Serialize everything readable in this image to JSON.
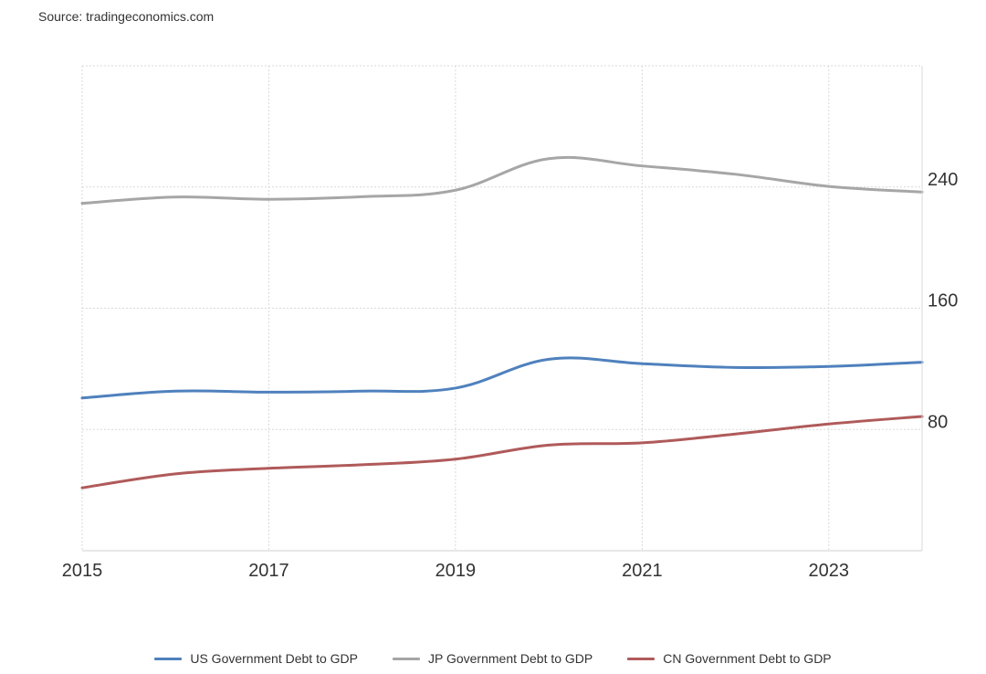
{
  "source": "Source: tradingeconomics.com",
  "chart_data": {
    "type": "line",
    "x": [
      2015,
      2016,
      2017,
      2018,
      2019,
      2020,
      2021,
      2022,
      2023,
      2024
    ],
    "xticks": [
      "2015",
      "2017",
      "2019",
      "2021",
      "2023"
    ],
    "yticks": [
      "80",
      "160",
      "240"
    ],
    "ylim": [
      0,
      320
    ],
    "xlim": [
      2015,
      2024
    ],
    "grid": true,
    "legend_position": "bottom",
    "series": [
      {
        "name": "US Government Debt to GDP",
        "color": "#4f81bd",
        "values": [
          100.8,
          105.3,
          104.6,
          105.3,
          107.3,
          126.3,
          123.4,
          120.9,
          121.6,
          124.4
        ]
      },
      {
        "name": "JP Government Debt to GDP",
        "color": "#a6a6a6",
        "values": [
          229.2,
          233.4,
          231.9,
          233.6,
          237.9,
          258.7,
          253.9,
          248.4,
          240.4,
          236.7
        ]
      },
      {
        "name": "CN Government Debt to GDP",
        "color": "#b05a5a",
        "values": [
          41.5,
          50.7,
          54.4,
          56.7,
          60.4,
          69.7,
          71.2,
          77.0,
          83.6,
          88.6
        ]
      }
    ]
  }
}
